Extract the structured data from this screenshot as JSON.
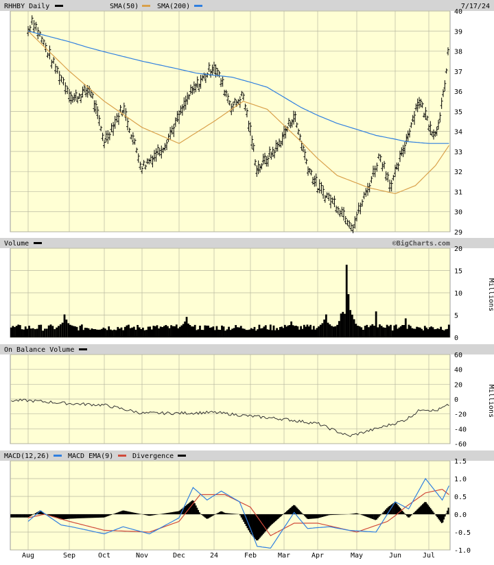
{
  "chart_data": [
    {
      "type": "line",
      "title": "RHHBY Daily",
      "date": "7/17/24",
      "ylim": [
        29,
        40
      ],
      "yticks": [
        29,
        30,
        31,
        32,
        33,
        34,
        35,
        36,
        37,
        38,
        39,
        40
      ],
      "x_months": [
        "Aug",
        "Sep",
        "Oct",
        "Nov",
        "Dec",
        "24",
        "Feb",
        "Mar",
        "Apr",
        "May",
        "Jun",
        "Jul"
      ],
      "legend": [
        "SMA(50)",
        "SMA(200)"
      ],
      "colors": {
        "price": "#000000",
        "sma50": "#d9a04a",
        "sma200": "#2f7fe0"
      },
      "price_keypoints": [
        {
          "month_index": 0,
          "value": 39.0
        },
        {
          "month_index": 0.1,
          "value": 39.6
        },
        {
          "month_index": 0.6,
          "value": 37.4
        },
        {
          "month_index": 1.1,
          "value": 35.6
        },
        {
          "month_index": 1.6,
          "value": 36.1
        },
        {
          "month_index": 2.0,
          "value": 33.5
        },
        {
          "month_index": 2.5,
          "value": 35.2
        },
        {
          "month_index": 3.0,
          "value": 32.2
        },
        {
          "month_index": 3.6,
          "value": 33.3
        },
        {
          "month_index": 4.3,
          "value": 35.8
        },
        {
          "month_index": 5.0,
          "value": 37.3
        },
        {
          "month_index": 5.5,
          "value": 35.2
        },
        {
          "month_index": 5.8,
          "value": 35.8
        },
        {
          "month_index": 6.2,
          "value": 32.1
        },
        {
          "month_index": 6.8,
          "value": 33.2
        },
        {
          "month_index": 7.3,
          "value": 34.8
        },
        {
          "month_index": 7.7,
          "value": 32.3
        },
        {
          "month_index": 8.0,
          "value": 31.2
        },
        {
          "month_index": 8.5,
          "value": 30.3
        },
        {
          "month_index": 8.9,
          "value": 29.3
        },
        {
          "month_index": 9.3,
          "value": 31.2
        },
        {
          "month_index": 9.6,
          "value": 32.8
        },
        {
          "month_index": 9.9,
          "value": 31.3
        },
        {
          "month_index": 10.3,
          "value": 33.4
        },
        {
          "month_index": 10.7,
          "value": 35.6
        },
        {
          "month_index": 11.0,
          "value": 34.4
        },
        {
          "month_index": 11.2,
          "value": 33.8
        },
        {
          "month_index": 11.5,
          "value": 36.3
        },
        {
          "month_index": 11.6,
          "value": 38.9
        }
      ],
      "sma50_keypoints": [
        {
          "month_index": 0,
          "value": 39.0
        },
        {
          "month_index": 1.0,
          "value": 37.0
        },
        {
          "month_index": 2.0,
          "value": 35.5
        },
        {
          "month_index": 3.0,
          "value": 34.2
        },
        {
          "month_index": 4.0,
          "value": 33.4
        },
        {
          "month_index": 5.0,
          "value": 34.5
        },
        {
          "month_index": 5.8,
          "value": 35.5
        },
        {
          "month_index": 6.5,
          "value": 35.1
        },
        {
          "month_index": 7.5,
          "value": 33.5
        },
        {
          "month_index": 8.5,
          "value": 31.8
        },
        {
          "month_index": 9.3,
          "value": 31.2
        },
        {
          "month_index": 10.0,
          "value": 30.9
        },
        {
          "month_index": 10.6,
          "value": 31.3
        },
        {
          "month_index": 11.2,
          "value": 32.3
        },
        {
          "month_index": 11.6,
          "value": 33.3
        }
      ],
      "sma200_keypoints": [
        {
          "month_index": 0,
          "value": 39.0
        },
        {
          "month_index": 1.5,
          "value": 38.2
        },
        {
          "month_index": 3.0,
          "value": 37.5
        },
        {
          "month_index": 4.5,
          "value": 36.9
        },
        {
          "month_index": 5.5,
          "value": 36.7
        },
        {
          "month_index": 6.5,
          "value": 36.2
        },
        {
          "month_index": 7.5,
          "value": 35.2
        },
        {
          "month_index": 8.5,
          "value": 34.4
        },
        {
          "month_index": 9.5,
          "value": 33.8
        },
        {
          "month_index": 10.3,
          "value": 33.5
        },
        {
          "month_index": 11.0,
          "value": 33.4
        },
        {
          "month_index": 11.6,
          "value": 33.4
        }
      ]
    },
    {
      "type": "area",
      "title": "Volume",
      "ylabel": "Millions",
      "ylim": [
        0,
        20
      ],
      "yticks": [
        0,
        5,
        10,
        15,
        20
      ],
      "baseline": 1.5,
      "spikes": [
        {
          "month_index": 0.9,
          "value": 6.5
        },
        {
          "month_index": 4.2,
          "value": 5.8
        },
        {
          "month_index": 7.2,
          "value": 4.5
        },
        {
          "month_index": 8.2,
          "value": 6.5
        },
        {
          "month_index": 8.6,
          "value": 5.5
        },
        {
          "month_index": 8.75,
          "value": 18.5
        },
        {
          "month_index": 8.9,
          "value": 5.5
        },
        {
          "month_index": 9.5,
          "value": 6.0
        },
        {
          "month_index": 10.3,
          "value": 5.0
        }
      ]
    },
    {
      "type": "line",
      "title": "On Balance Volume",
      "ylabel": "Millions",
      "ylim": [
        -60,
        60
      ],
      "yticks": [
        -60,
        -40,
        -20,
        0,
        20,
        40,
        60
      ],
      "keypoints": [
        {
          "month_index": 0,
          "value": -2
        },
        {
          "month_index": 1.0,
          "value": -6
        },
        {
          "month_index": 2.0,
          "value": -8
        },
        {
          "month_index": 3.0,
          "value": -19
        },
        {
          "month_index": 4.0,
          "value": -19
        },
        {
          "month_index": 5.0,
          "value": -18
        },
        {
          "month_index": 6.0,
          "value": -23
        },
        {
          "month_index": 7.0,
          "value": -27
        },
        {
          "month_index": 8.0,
          "value": -33
        },
        {
          "month_index": 8.8,
          "value": -50
        },
        {
          "month_index": 9.5,
          "value": -40
        },
        {
          "month_index": 10.3,
          "value": -28
        },
        {
          "month_index": 10.8,
          "value": -13
        },
        {
          "month_index": 11.2,
          "value": -16
        },
        {
          "month_index": 11.6,
          "value": -8
        }
      ]
    },
    {
      "type": "line",
      "title": "MACD(12,26)",
      "legend": [
        "MACD EMA(9)",
        "Divergence"
      ],
      "ylim": [
        -1.0,
        1.5
      ],
      "yticks": [
        -1.0,
        -0.5,
        0.0,
        0.5,
        1.0,
        1.5
      ],
      "colors": {
        "macd": "#2f7fe0",
        "ema": "#d04a3a",
        "divergence": "#000000"
      },
      "macd_keypoints": [
        {
          "month_index": 0,
          "value": -0.2
        },
        {
          "month_index": 0.3,
          "value": 0.1
        },
        {
          "month_index": 0.8,
          "value": -0.3
        },
        {
          "month_index": 1.3,
          "value": -0.4
        },
        {
          "month_index": 2.0,
          "value": -0.55
        },
        {
          "month_index": 2.5,
          "value": -0.35
        },
        {
          "month_index": 3.2,
          "value": -0.55
        },
        {
          "month_index": 4.0,
          "value": -0.1
        },
        {
          "month_index": 4.4,
          "value": 0.75
        },
        {
          "month_index": 4.8,
          "value": 0.4
        },
        {
          "month_index": 5.2,
          "value": 0.65
        },
        {
          "month_index": 5.7,
          "value": 0.35
        },
        {
          "month_index": 6.2,
          "value": -0.9
        },
        {
          "month_index": 6.6,
          "value": -0.95
        },
        {
          "month_index": 7.3,
          "value": 0.05
        },
        {
          "month_index": 7.7,
          "value": -0.4
        },
        {
          "month_index": 8.3,
          "value": -0.35
        },
        {
          "month_index": 8.8,
          "value": -0.45
        },
        {
          "month_index": 9.5,
          "value": -0.5
        },
        {
          "month_index": 10.0,
          "value": 0.35
        },
        {
          "month_index": 10.4,
          "value": 0.15
        },
        {
          "month_index": 10.9,
          "value": 1.0
        },
        {
          "month_index": 11.4,
          "value": 0.4
        },
        {
          "month_index": 11.6,
          "value": 0.8
        }
      ],
      "ema_keypoints": [
        {
          "month_index": 0,
          "value": -0.1
        },
        {
          "month_index": 0.4,
          "value": 0.0
        },
        {
          "month_index": 1.0,
          "value": -0.2
        },
        {
          "month_index": 2.0,
          "value": -0.45
        },
        {
          "month_index": 3.2,
          "value": -0.5
        },
        {
          "month_index": 4.0,
          "value": -0.2
        },
        {
          "month_index": 4.6,
          "value": 0.55
        },
        {
          "month_index": 5.3,
          "value": 0.55
        },
        {
          "month_index": 6.0,
          "value": 0.2
        },
        {
          "month_index": 6.6,
          "value": -0.6
        },
        {
          "month_index": 7.3,
          "value": -0.25
        },
        {
          "month_index": 8.0,
          "value": -0.25
        },
        {
          "month_index": 9.0,
          "value": -0.5
        },
        {
          "month_index": 9.8,
          "value": -0.2
        },
        {
          "month_index": 10.3,
          "value": 0.2
        },
        {
          "month_index": 10.9,
          "value": 0.6
        },
        {
          "month_index": 11.4,
          "value": 0.7
        },
        {
          "month_index": 11.6,
          "value": 0.55
        }
      ]
    }
  ],
  "legend_labels": {
    "volume": "Volume",
    "obv": "On Balance Volume",
    "macd": "MACD(12,26)"
  },
  "watermark": "©BigCharts.com",
  "axis_unit": "Millions"
}
